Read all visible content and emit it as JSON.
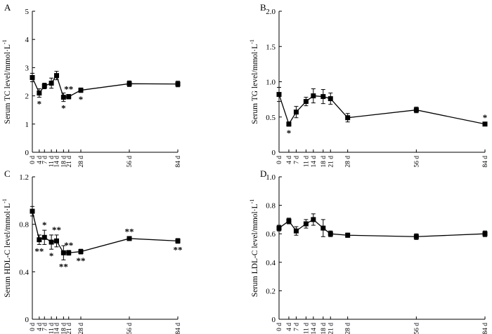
{
  "figure": {
    "x_categories": [
      "0 d",
      "4 d",
      "7 d",
      "11 d",
      "14 d",
      "18 d",
      "21 d",
      "28 d",
      "56 d",
      "84 d"
    ]
  },
  "chart_data": [
    {
      "type": "line",
      "panel": "A",
      "title": "",
      "xlabel": "",
      "ylabel": "Serum TC level/mmol·L",
      "ylabel_sup": "-1",
      "x": [
        0,
        4,
        7,
        11,
        14,
        18,
        21,
        28,
        56,
        84
      ],
      "x_categories": [
        "0 d",
        "4 d",
        "7 d",
        "11 d",
        "14 d",
        "18 d",
        "21 d",
        "28 d",
        "56 d",
        "84 d"
      ],
      "ylim": [
        0,
        5
      ],
      "yticks": [
        0,
        1,
        2,
        3,
        4,
        5
      ],
      "ytick_labels": [
        "0",
        "1",
        "2",
        "3",
        "4",
        "5"
      ],
      "values": [
        2.65,
        2.1,
        2.35,
        2.45,
        2.72,
        1.95,
        1.97,
        2.2,
        2.43,
        2.42
      ],
      "errors": [
        0.15,
        0.15,
        0.1,
        0.18,
        0.15,
        0.15,
        0.08,
        0.08,
        0.1,
        0.1
      ],
      "significance": [
        {
          "x": 4,
          "label": "*",
          "pos": "below"
        },
        {
          "x": 18,
          "label": "*",
          "pos": "below"
        },
        {
          "x": 21,
          "label": "**",
          "pos": "above"
        },
        {
          "x": 28,
          "label": "*",
          "pos": "below"
        }
      ]
    },
    {
      "type": "line",
      "panel": "B",
      "title": "",
      "xlabel": "",
      "ylabel": "Serum TG level/mmol·L",
      "ylabel_sup": "-1",
      "x": [
        0,
        4,
        7,
        11,
        14,
        18,
        21,
        28,
        56,
        84
      ],
      "x_categories": [
        "0 d",
        "4 d",
        "7 d",
        "11 d",
        "14 d",
        "18 d",
        "21 d",
        "28 d",
        "56 d",
        "84 d"
      ],
      "ylim": [
        0,
        2
      ],
      "yticks": [
        0,
        0.5,
        1,
        1.5,
        2
      ],
      "ytick_labels": [
        "0",
        "0.5",
        "1.0",
        "1.5",
        "2.0"
      ],
      "values": [
        0.82,
        0.4,
        0.57,
        0.72,
        0.8,
        0.79,
        0.76,
        0.49,
        0.6,
        0.4
      ],
      "errors": [
        0.1,
        0.03,
        0.08,
        0.06,
        0.1,
        0.1,
        0.08,
        0.06,
        0.04,
        0.02
      ],
      "significance": [
        {
          "x": 4,
          "label": "*",
          "pos": "below"
        },
        {
          "x": 84,
          "label": "*",
          "pos": "above"
        }
      ]
    },
    {
      "type": "line",
      "panel": "C",
      "title": "",
      "xlabel": "",
      "ylabel": "Serum HDL-C level/mmol·L",
      "ylabel_sup": "-1",
      "x": [
        0,
        4,
        7,
        11,
        14,
        18,
        21,
        28,
        56,
        84
      ],
      "x_categories": [
        "0 d",
        "4 d",
        "7 d",
        "11 d",
        "14 d",
        "18 d",
        "21 d",
        "28 d",
        "56 d",
        "84 d"
      ],
      "ylim": [
        0,
        1.2
      ],
      "yticks": [
        0,
        0.4,
        0.8,
        1.2
      ],
      "ytick_labels": [
        "0",
        "0.4",
        "0.8",
        "1.2"
      ],
      "values": [
        0.91,
        0.67,
        0.69,
        0.65,
        0.66,
        0.56,
        0.56,
        0.57,
        0.68,
        0.66
      ],
      "errors": [
        0.04,
        0.04,
        0.06,
        0.06,
        0.05,
        0.06,
        0.02,
        0.02,
        0.015,
        0.02
      ],
      "significance": [
        {
          "x": 4,
          "label": "**",
          "pos": "below"
        },
        {
          "x": 7,
          "label": "*",
          "pos": "above"
        },
        {
          "x": 11,
          "label": "*",
          "pos": "below"
        },
        {
          "x": 14,
          "label": "**",
          "pos": "above"
        },
        {
          "x": 18,
          "label": "**",
          "pos": "below"
        },
        {
          "x": 21,
          "label": "**",
          "pos": "above"
        },
        {
          "x": 28,
          "label": "**",
          "pos": "below"
        },
        {
          "x": 56,
          "label": "**",
          "pos": "above"
        },
        {
          "x": 84,
          "label": "**",
          "pos": "below"
        }
      ]
    },
    {
      "type": "line",
      "panel": "D",
      "title": "",
      "xlabel": "",
      "ylabel": "Serum LDL-C level/mmol·L",
      "ylabel_sup": "-1",
      "x": [
        0,
        4,
        7,
        11,
        14,
        18,
        21,
        28,
        56,
        84
      ],
      "x_categories": [
        "0 d",
        "4 d",
        "7 d",
        "11 d",
        "14 d",
        "18 d",
        "21 d",
        "28 d",
        "56 d",
        "84 d"
      ],
      "ylim": [
        0,
        1
      ],
      "yticks": [
        0,
        0.2,
        0.4,
        0.6,
        0.8,
        1
      ],
      "ytick_labels": [
        "0",
        "0.2",
        "0.4",
        "0.6",
        "0.8",
        "1.0"
      ],
      "values": [
        0.64,
        0.69,
        0.62,
        0.67,
        0.7,
        0.64,
        0.6,
        0.59,
        0.58,
        0.6
      ],
      "errors": [
        0.02,
        0.02,
        0.03,
        0.03,
        0.04,
        0.06,
        0.02,
        0.015,
        0.02,
        0.02
      ],
      "significance": []
    }
  ]
}
